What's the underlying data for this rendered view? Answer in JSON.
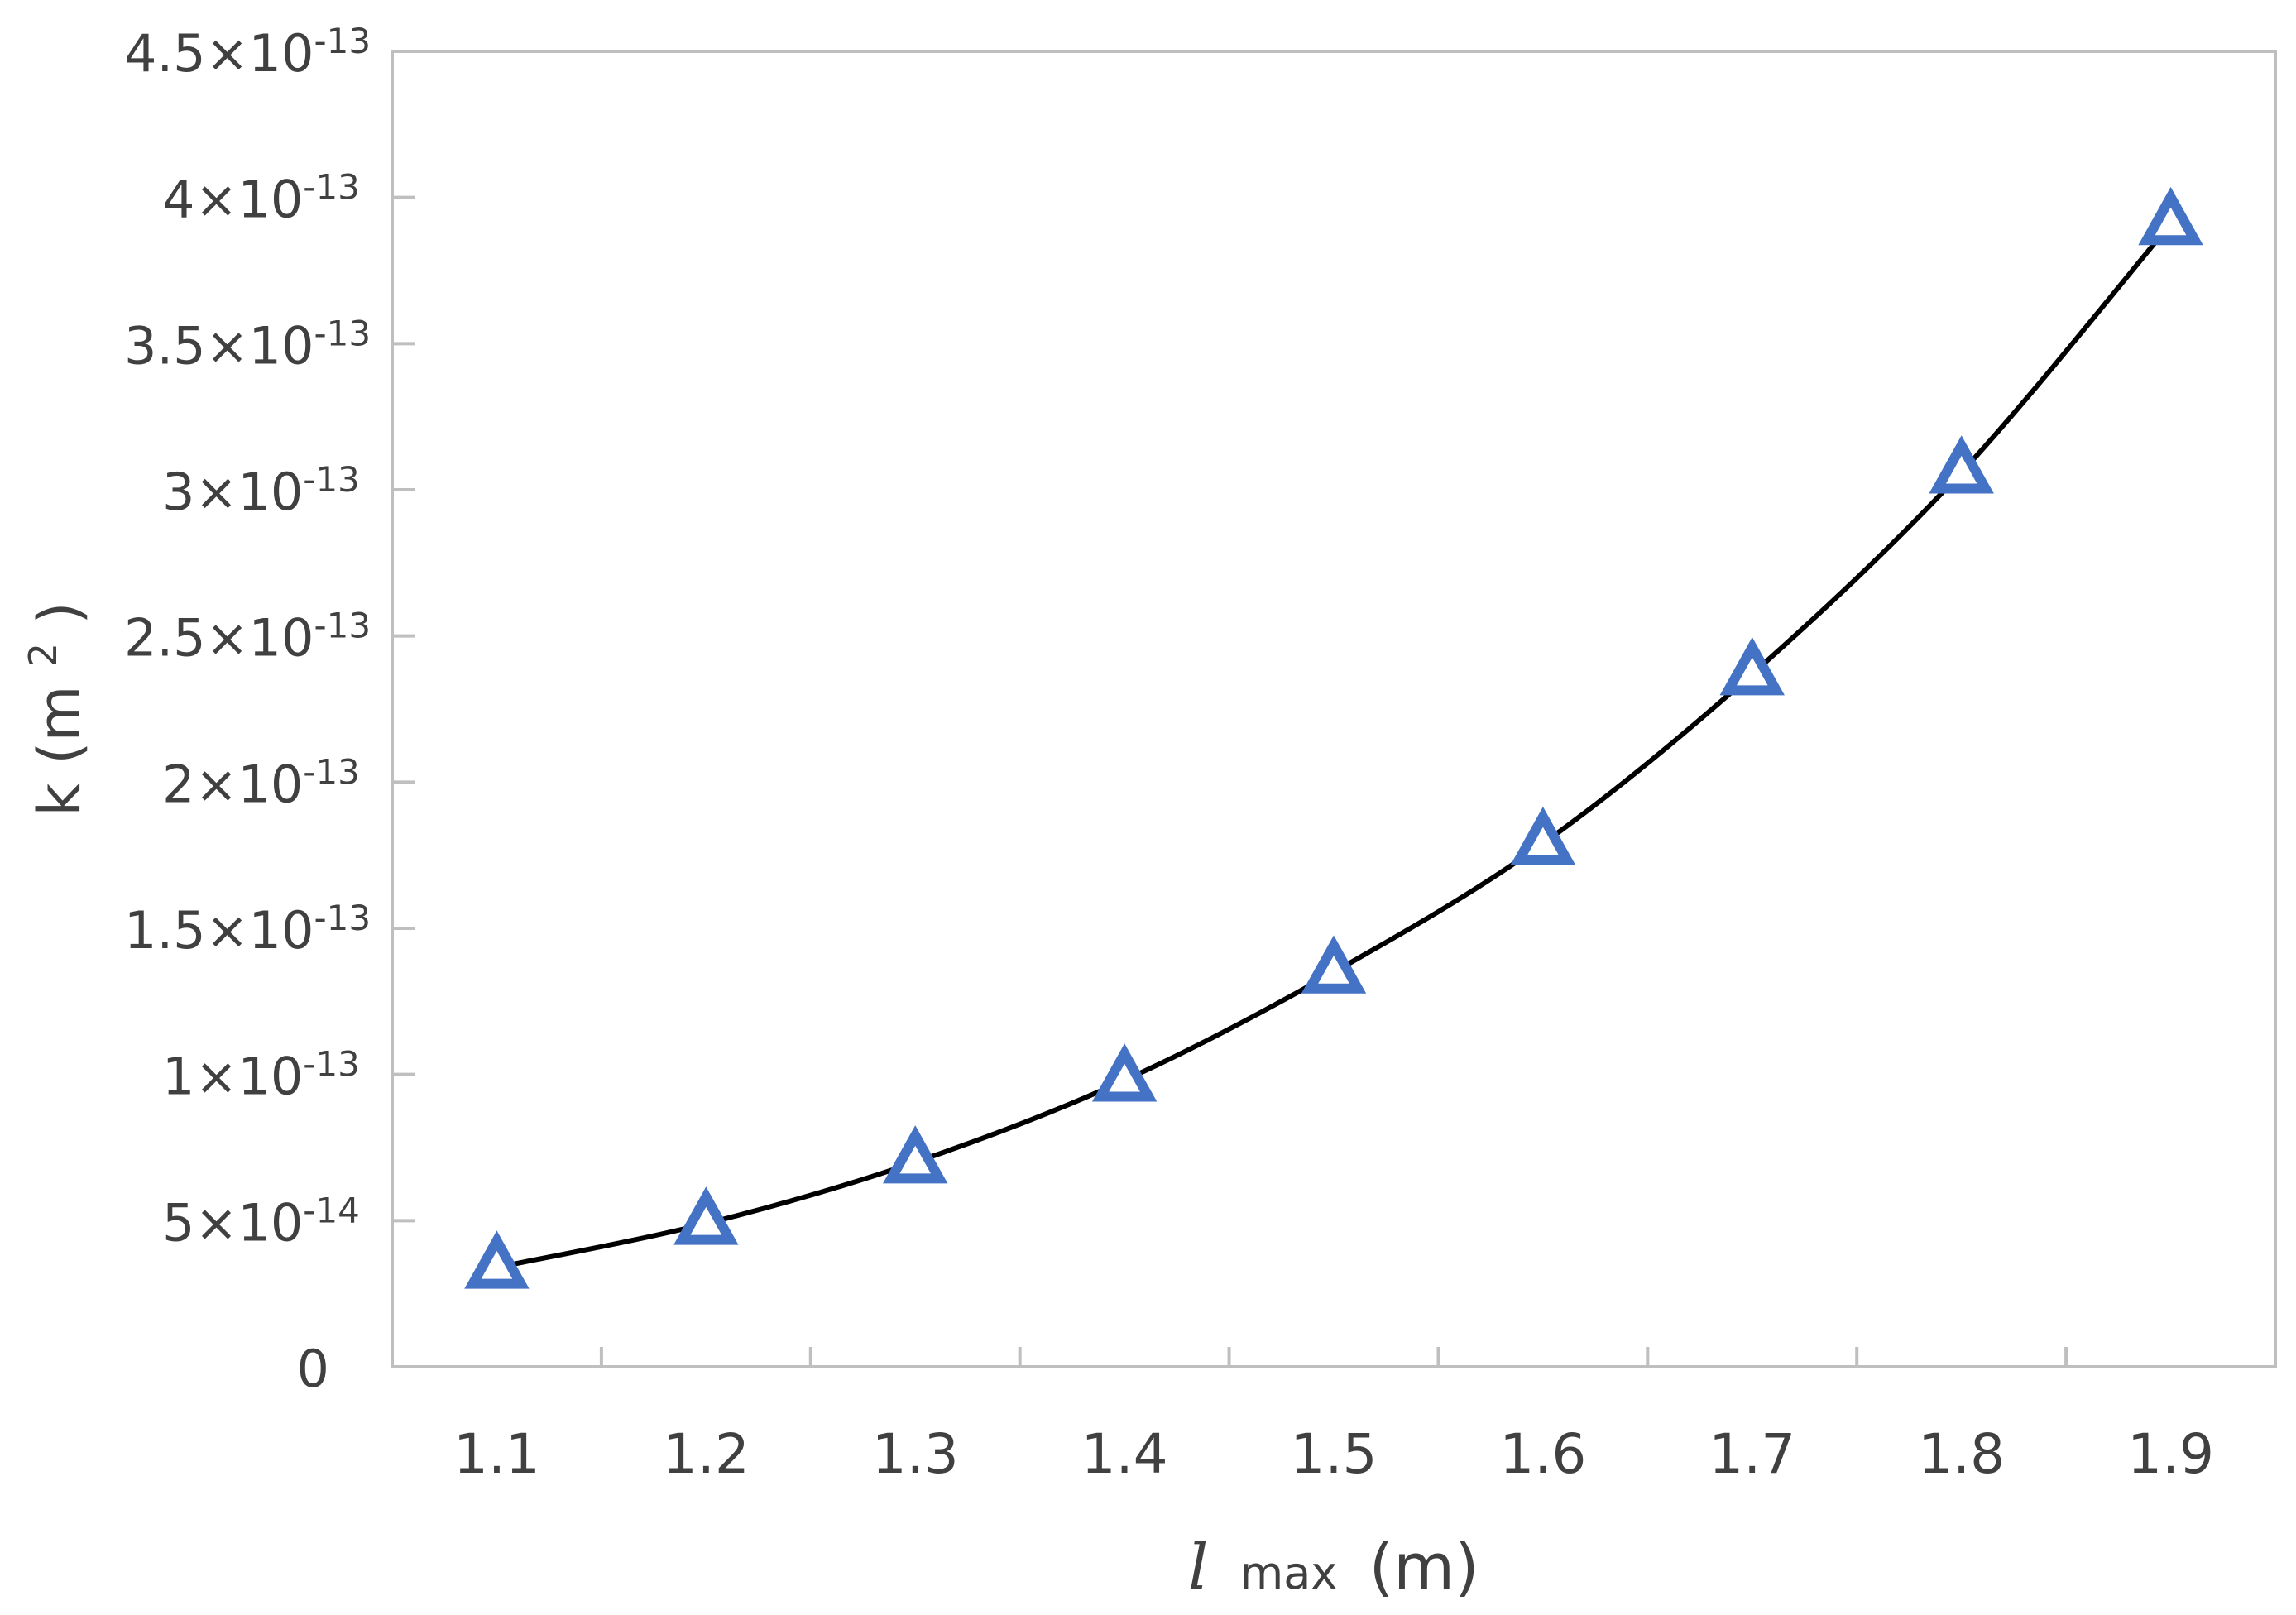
{
  "chart_data": {
    "type": "line",
    "title": "",
    "xlabel": {
      "symbol": "l",
      "subscript": "max",
      "unit": "(m)"
    },
    "ylabel": {
      "text": "k (m",
      "superscript": "2",
      "close": ")"
    },
    "x_ticks": [
      "1.1",
      "1.2",
      "1.3",
      "1.4",
      "1.5",
      "1.6",
      "1.7",
      "1.8",
      "1.9"
    ],
    "y_ticks": [
      {
        "value": 0,
        "mantissa": "0",
        "exponent": ""
      },
      {
        "value": 5e-14,
        "mantissa": "5×10",
        "exponent": "-14"
      },
      {
        "value": 1e-13,
        "mantissa": "1×10",
        "exponent": "-13"
      },
      {
        "value": 1.5e-13,
        "mantissa": "1.5×10",
        "exponent": "-13"
      },
      {
        "value": 2e-13,
        "mantissa": "2×10",
        "exponent": "-13"
      },
      {
        "value": 2.5e-13,
        "mantissa": "2.5×10",
        "exponent": "-13"
      },
      {
        "value": 3e-13,
        "mantissa": "3×10",
        "exponent": "-13"
      },
      {
        "value": 3.5e-13,
        "mantissa": "3.5×10",
        "exponent": "-13"
      },
      {
        "value": 4e-13,
        "mantissa": "4×10",
        "exponent": "-13"
      },
      {
        "value": 4.5e-13,
        "mantissa": "4.5×10",
        "exponent": "-13"
      }
    ],
    "xlim": [
      1.05,
      1.95
    ],
    "ylim": [
      0,
      4.5e-13
    ],
    "grid": false,
    "series": [
      {
        "x": [
          1.1,
          1.2,
          1.3,
          1.4,
          1.5,
          1.6,
          1.7,
          1.8,
          1.9
        ],
        "y": [
          3.4e-14,
          4.9e-14,
          7e-14,
          9.8e-14,
          1.35e-13,
          1.79e-13,
          2.37e-13,
          3.06e-13,
          3.91e-13
        ],
        "marker": "triangle-open",
        "line_color": "#000000",
        "marker_color": "#4472c4"
      }
    ]
  }
}
